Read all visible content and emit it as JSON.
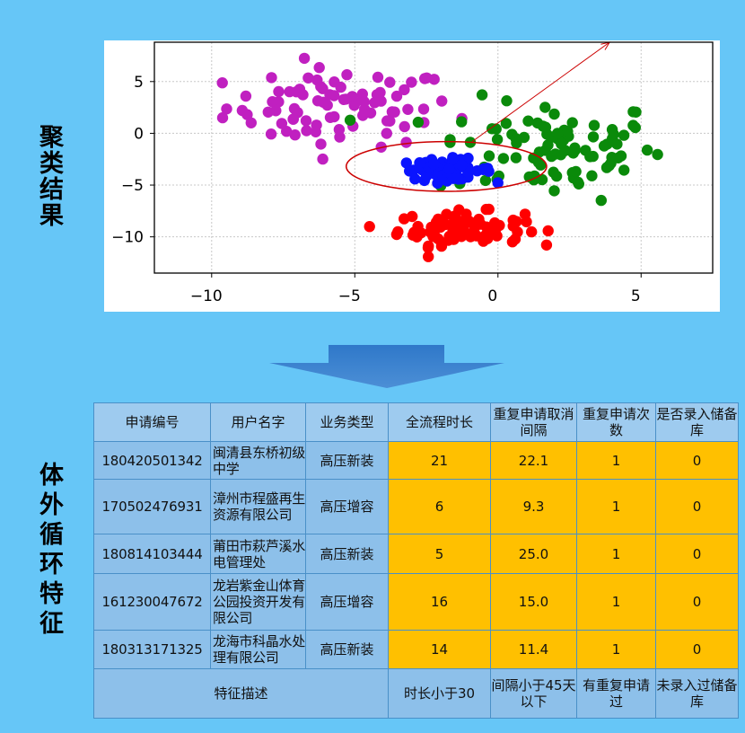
{
  "labels": {
    "top": "聚类结果",
    "bottom": "体外循环特征"
  },
  "colors": {
    "background": "#66c6f7",
    "highlight": "#ffc000",
    "cell": "#8dc0ea",
    "header": "#9ecbef"
  },
  "chart_data": {
    "type": "scatter",
    "xlim": [
      -12,
      7.5
    ],
    "ylim": [
      -13.5,
      8.8
    ],
    "xticks": [
      -10,
      -5,
      0,
      5
    ],
    "yticks": [
      5,
      0,
      -5,
      -10
    ],
    "grid": true,
    "series": [
      {
        "color": "#c020c0",
        "center": [
          -5.5,
          2.5
        ],
        "spread": [
          2.0,
          1.9
        ],
        "count": 85
      },
      {
        "color": "#0a8a0a",
        "center": [
          1.8,
          -1.5
        ],
        "spread": [
          2.0,
          2.4
        ],
        "count": 95
      },
      {
        "color": "#ff0000",
        "center": [
          -1.3,
          -9.2
        ],
        "spread": [
          1.1,
          0.8
        ],
        "count": 85
      },
      {
        "color": "#0a14ff",
        "center": [
          -1.8,
          -3.5
        ],
        "spread": [
          0.8,
          0.5
        ],
        "count": 60
      }
    ],
    "annotations": {
      "ellipse": {
        "center": [
          -1.8,
          -3.2
        ],
        "radii": [
          3.5,
          2.4
        ],
        "color": "#cc0000"
      },
      "arrow": {
        "from": [
          -0.9,
          -0.8
        ],
        "to": [
          3.9,
          8.8
        ],
        "color": "#cc0000"
      }
    }
  },
  "table": {
    "headers": [
      "申请编号",
      "用户名字",
      "业务类型",
      "全流程时长",
      "重复申请取消间隔",
      "重复申请次数",
      "是否录入储备库"
    ],
    "rows": [
      [
        "180420501342",
        "闽清县东桥初级中学",
        "高压新装",
        "21",
        "22.1",
        "1",
        "0"
      ],
      [
        "170502476931",
        "漳州市程盛再生资源有限公司",
        "高压增容",
        "6",
        "9.3",
        "1",
        "0"
      ],
      [
        "180814103444",
        "莆田市萩芦溪水电管理处",
        "高压新装",
        "5",
        "25.0",
        "1",
        "0"
      ],
      [
        "161230047672",
        "龙岩紫金山体育公园投资开发有限公司",
        "高压增容",
        "16",
        "15.0",
        "1",
        "0"
      ],
      [
        "180313171325",
        "龙海市科晶水处理有限公司",
        "高压新装",
        "14",
        "11.4",
        "1",
        "0"
      ]
    ],
    "footer": {
      "label": "特征描述",
      "values": [
        "时长小于30",
        "间隔小于45天以下",
        "有重复申请过",
        "未录入过储备库"
      ]
    }
  }
}
